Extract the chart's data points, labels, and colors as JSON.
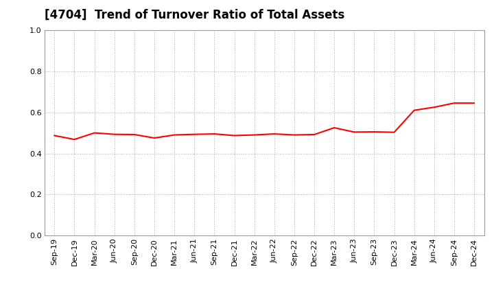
{
  "title": "[4704]  Trend of Turnover Ratio of Total Assets",
  "x_labels": [
    "Sep-19",
    "Dec-19",
    "Mar-20",
    "Jun-20",
    "Sep-20",
    "Dec-20",
    "Mar-21",
    "Jun-21",
    "Sep-21",
    "Dec-21",
    "Mar-22",
    "Jun-22",
    "Sep-22",
    "Dec-22",
    "Mar-23",
    "Jun-23",
    "Sep-23",
    "Dec-23",
    "Mar-24",
    "Jun-24",
    "Sep-24",
    "Dec-24"
  ],
  "y_values": [
    0.487,
    0.468,
    0.5,
    0.493,
    0.492,
    0.475,
    0.49,
    0.493,
    0.495,
    0.487,
    0.49,
    0.495,
    0.49,
    0.492,
    0.525,
    0.504,
    0.505,
    0.503,
    0.61,
    0.625,
    0.645,
    0.645
  ],
  "line_color": "#FF0000",
  "line_width": 1.5,
  "ylim": [
    0.0,
    1.0
  ],
  "yticks": [
    0.0,
    0.2,
    0.4,
    0.6,
    0.8,
    1.0
  ],
  "background_color": "#ffffff",
  "grid_color": "#aaaaaa",
  "title_fontsize": 12,
  "tick_fontsize": 8
}
